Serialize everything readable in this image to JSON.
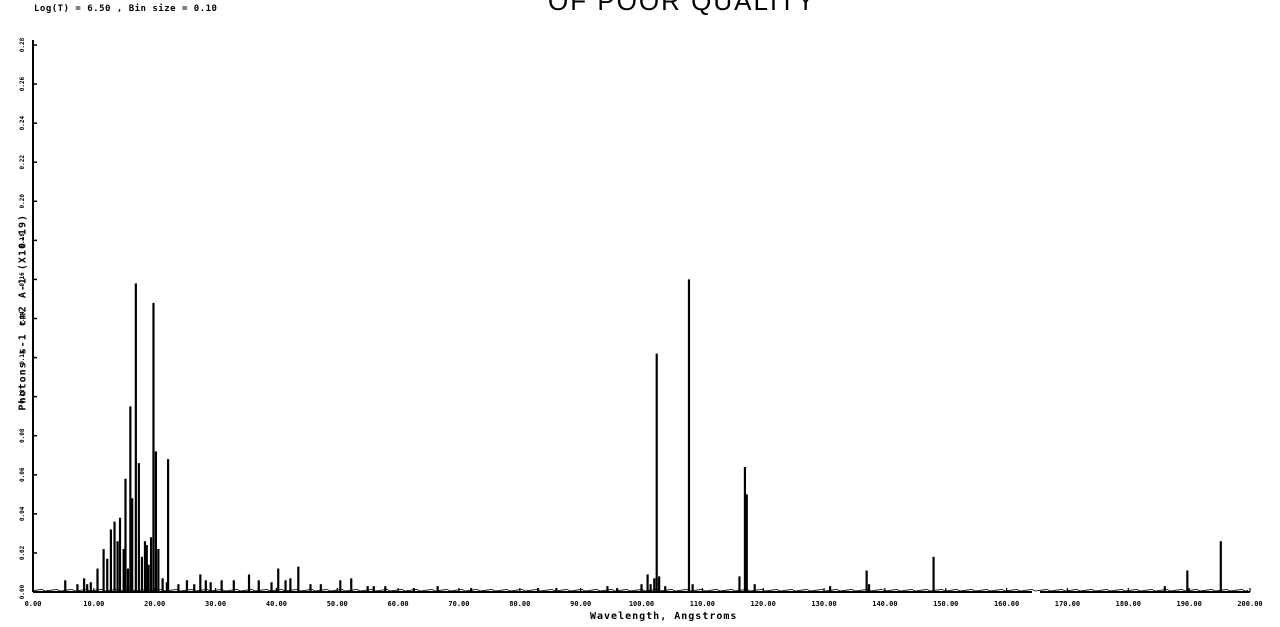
{
  "header": {
    "info_text": "Log(T) = 6.50 , Bin size = 0.10",
    "quality_stamp": "OF POOR QUALITY"
  },
  "chart_data": {
    "type": "line",
    "xlabel": "Wavelength, Angstroms",
    "ylabel": "Photons s-1 cm2 A-1  (X10-19)",
    "xlim": [
      0,
      200
    ],
    "ylim": [
      0,
      0.3
    ],
    "x_tick_labels": [
      "0.00",
      "10.00",
      "20.00",
      "30.00",
      "40.00",
      "50.00",
      "60.00",
      "70.00",
      "80.00",
      "90.00",
      "100.00",
      "110.00",
      "120.00",
      "130.00",
      "140.00",
      "150.00",
      "160.00",
      "170.00",
      "180.00",
      "190.00",
      "200.00"
    ],
    "y_tick_labels": [
      "0.00",
      "0.02",
      "0.04",
      "0.06",
      "0.08",
      "0.10",
      "0.12",
      "0.14",
      "0.16",
      "0.18",
      "0.20",
      "0.22",
      "0.24",
      "0.26",
      "0.28"
    ],
    "grid": false,
    "peaks": [
      {
        "x": 5.3,
        "y": 0.006
      },
      {
        "x": 7.3,
        "y": 0.004
      },
      {
        "x": 8.4,
        "y": 0.007
      },
      {
        "x": 8.9,
        "y": 0.004
      },
      {
        "x": 9.5,
        "y": 0.005
      },
      {
        "x": 10.6,
        "y": 0.012
      },
      {
        "x": 11.6,
        "y": 0.022
      },
      {
        "x": 12.2,
        "y": 0.017
      },
      {
        "x": 12.8,
        "y": 0.032
      },
      {
        "x": 13.4,
        "y": 0.036
      },
      {
        "x": 13.9,
        "y": 0.026
      },
      {
        "x": 14.3,
        "y": 0.038
      },
      {
        "x": 14.9,
        "y": 0.022
      },
      {
        "x": 15.2,
        "y": 0.058
      },
      {
        "x": 15.6,
        "y": 0.012
      },
      {
        "x": 16.0,
        "y": 0.095
      },
      {
        "x": 16.3,
        "y": 0.048
      },
      {
        "x": 16.9,
        "y": 0.158
      },
      {
        "x": 17.4,
        "y": 0.066
      },
      {
        "x": 17.9,
        "y": 0.018
      },
      {
        "x": 18.4,
        "y": 0.026
      },
      {
        "x": 18.7,
        "y": 0.024
      },
      {
        "x": 19.0,
        "y": 0.014
      },
      {
        "x": 19.4,
        "y": 0.028
      },
      {
        "x": 19.8,
        "y": 0.148
      },
      {
        "x": 20.2,
        "y": 0.072
      },
      {
        "x": 20.6,
        "y": 0.022
      },
      {
        "x": 21.3,
        "y": 0.007
      },
      {
        "x": 22.0,
        "y": 0.005
      },
      {
        "x": 22.2,
        "y": 0.068
      },
      {
        "x": 23.9,
        "y": 0.004
      },
      {
        "x": 25.3,
        "y": 0.006
      },
      {
        "x": 26.5,
        "y": 0.004
      },
      {
        "x": 27.5,
        "y": 0.009
      },
      {
        "x": 28.4,
        "y": 0.006
      },
      {
        "x": 29.2,
        "y": 0.005
      },
      {
        "x": 31.0,
        "y": 0.006
      },
      {
        "x": 33.0,
        "y": 0.006
      },
      {
        "x": 35.5,
        "y": 0.009
      },
      {
        "x": 37.1,
        "y": 0.006
      },
      {
        "x": 39.2,
        "y": 0.005
      },
      {
        "x": 40.3,
        "y": 0.012
      },
      {
        "x": 41.5,
        "y": 0.006
      },
      {
        "x": 42.3,
        "y": 0.007
      },
      {
        "x": 43.6,
        "y": 0.013
      },
      {
        "x": 45.6,
        "y": 0.004
      },
      {
        "x": 47.3,
        "y": 0.004
      },
      {
        "x": 50.5,
        "y": 0.006
      },
      {
        "x": 52.3,
        "y": 0.007
      },
      {
        "x": 55.0,
        "y": 0.003
      },
      {
        "x": 56.0,
        "y": 0.003
      },
      {
        "x": 57.9,
        "y": 0.003
      },
      {
        "x": 62.6,
        "y": 0.002
      },
      {
        "x": 66.5,
        "y": 0.003
      },
      {
        "x": 72.0,
        "y": 0.002
      },
      {
        "x": 83.0,
        "y": 0.002
      },
      {
        "x": 86.0,
        "y": 0.002
      },
      {
        "x": 94.4,
        "y": 0.003
      },
      {
        "x": 96.0,
        "y": 0.002
      },
      {
        "x": 100.0,
        "y": 0.004
      },
      {
        "x": 101.0,
        "y": 0.009
      },
      {
        "x": 101.5,
        "y": 0.004
      },
      {
        "x": 102.1,
        "y": 0.007
      },
      {
        "x": 102.5,
        "y": 0.122
      },
      {
        "x": 102.9,
        "y": 0.008
      },
      {
        "x": 103.9,
        "y": 0.003
      },
      {
        "x": 107.8,
        "y": 0.16
      },
      {
        "x": 108.4,
        "y": 0.004
      },
      {
        "x": 116.1,
        "y": 0.008
      },
      {
        "x": 117.0,
        "y": 0.064
      },
      {
        "x": 117.3,
        "y": 0.05
      },
      {
        "x": 118.6,
        "y": 0.004
      },
      {
        "x": 131.0,
        "y": 0.003
      },
      {
        "x": 137.0,
        "y": 0.011
      },
      {
        "x": 137.4,
        "y": 0.004
      },
      {
        "x": 148.0,
        "y": 0.018
      },
      {
        "x": 186.0,
        "y": 0.003
      },
      {
        "x": 189.7,
        "y": 0.011
      },
      {
        "x": 195.2,
        "y": 0.026
      }
    ]
  }
}
